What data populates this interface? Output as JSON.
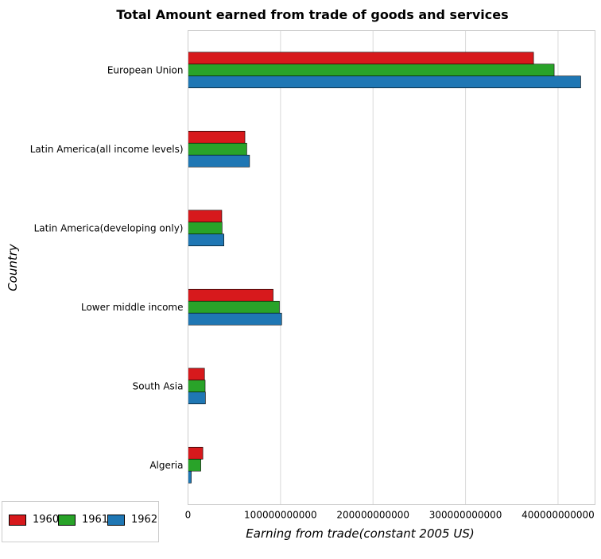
{
  "chart_data": {
    "type": "bar",
    "orientation": "horizontal",
    "title": "Total Amount earned from trade of goods and services",
    "xlabel": "Earning from trade(constant 2005 US)",
    "ylabel": "Country",
    "categories": [
      "European Union",
      "Latin America(all income levels)",
      "Latin America(developing only)",
      "Lower middle income",
      "South Asia",
      "Algeria"
    ],
    "series": [
      {
        "name": "1960",
        "color": "#d7191c",
        "values": [
          373500000000,
          61500000000,
          36500000000,
          92000000000,
          17800000000,
          16000000000
        ]
      },
      {
        "name": "1961",
        "color": "#29a329",
        "values": [
          395800000000,
          63500000000,
          36800000000,
          98800000000,
          18500000000,
          13800000000
        ]
      },
      {
        "name": "1962",
        "color": "#1f77b4",
        "values": [
          424500000000,
          66500000000,
          38800000000,
          101200000000,
          18800000000,
          3500000000
        ]
      }
    ],
    "xlim": [
      0,
      440000000000
    ],
    "xticks": [
      0,
      100000000000,
      200000000000,
      300000000000,
      400000000000
    ],
    "xtick_labels": [
      "0",
      "100000000000",
      "200000000000",
      "300000000000",
      "400000000000"
    ],
    "grid": true,
    "legend_position": "bottom-left"
  }
}
